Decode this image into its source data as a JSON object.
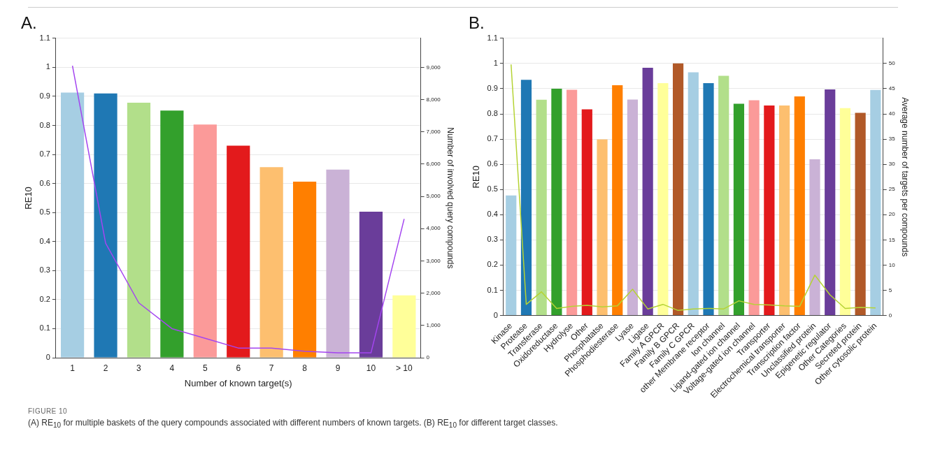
{
  "chart_data": [
    {
      "type": "bar",
      "title": "A.",
      "xlabel": "Number of known target(s)",
      "ylabel": "RE10",
      "y2label": "Number of involved query compounds",
      "categories": [
        "1",
        "2",
        "3",
        "4",
        "5",
        "6",
        "7",
        "8",
        "9",
        "10",
        "> 10"
      ],
      "series": [
        {
          "colors": [
            "#a6cee3",
            "#1f78b4",
            "#b2df8a",
            "#33a02c",
            "#fb9a99",
            "#e31a1c",
            "#fdbf6f",
            "#ff7f00",
            "#cab2d6",
            "#6a3d9a",
            "#ffff99"
          ],
          "values": [
            0.913,
            0.91,
            0.878,
            0.851,
            0.803,
            0.73,
            0.656,
            0.606,
            0.648,
            0.503,
            0.215
          ]
        },
        {
          "type": "line",
          "axis": "y2",
          "color": "#a445f0",
          "values": [
            9050,
            3550,
            1700,
            900,
            600,
            300,
            300,
            200,
            150,
            150,
            4300
          ]
        }
      ],
      "ylim": [
        0,
        1.1
      ],
      "yticks": [
        0,
        0.1,
        0.2,
        0.3,
        0.4,
        0.5,
        0.6,
        0.7,
        0.8,
        0.9,
        1,
        1.1
      ],
      "y2lim": [
        0,
        9900
      ],
      "y2ticks": [
        0,
        {
          "value": 1000,
          "label": "1,000"
        },
        {
          "value": 2000,
          "label": "2,000"
        },
        {
          "value": 3000,
          "label": "3,000"
        },
        {
          "value": 4000,
          "label": "4,000"
        },
        {
          "value": 5000,
          "label": "5,000"
        },
        {
          "value": 6000,
          "label": "6,000"
        },
        {
          "value": 7000,
          "label": "7,000"
        },
        {
          "value": 8000,
          "label": "8,000"
        },
        {
          "value": 9000,
          "label": "9,000"
        }
      ],
      "grid": "y",
      "legend": false,
      "annotations": [
        "FIGURE 10",
        "(A) RE$_{10}$ for multiple baskets of the query compounds associated with different numbers of known targets. (B) RE$_{10}$ for different target classes."
      ]
    },
    {
      "type": "bar",
      "title": "B.",
      "ylabel": "RE10",
      "y2label": "Average number of targets per compounds",
      "categories": [
        "Kinase",
        "Protease",
        "Transferase",
        "Oxidoreductase",
        "Hydrolyse",
        "Other",
        "Phosphatatse",
        "Phosphodiesterase",
        "Lyase",
        "Ligase",
        "Family A GPCR",
        "Family B GPCR",
        "Family C GPCR",
        "other Membrane receptor",
        "Ion channel",
        "Ligand-gated ion channel",
        "Voltage-gated ion channel",
        "Transporter",
        "Electrochemical transporter",
        "Transcription factor",
        "Unclassified protein",
        "Epigenetic regulator",
        "Other Categories",
        "Secreted protein",
        "Other cytosolic protein"
      ],
      "series": [
        {
          "colors": [
            "#a6cee3",
            "#1f78b4",
            "#b2df8a",
            "#33a02c",
            "#fb9a99",
            "#e31a1c",
            "#fdbf6f",
            "#ff7f00",
            "#cab2d6",
            "#6a3d9a",
            "#ffff99",
            "#b15928",
            "#a6cee3",
            "#1f78b4",
            "#b2df8a",
            "#33a02c",
            "#fb9a99",
            "#e31a1c",
            "#fdbf6f",
            "#ff7f00",
            "#cab2d6",
            "#6a3d9a",
            "#ffff99",
            "#b15928",
            "#a6cee3"
          ],
          "values": [
            0.476,
            0.935,
            0.856,
            0.9,
            0.896,
            0.818,
            0.699,
            0.914,
            0.857,
            0.983,
            0.922,
            1.0,
            0.965,
            0.922,
            0.951,
            0.84,
            0.854,
            0.833,
            0.833,
            0.869,
            0.62,
            0.897,
            0.823,
            0.804,
            0.895
          ]
        },
        {
          "type": "line",
          "axis": "y2",
          "color": "#b5d334",
          "values": [
            49.8,
            2.2,
            4.7,
            1.4,
            1.8,
            2.0,
            1.7,
            1.9,
            5.2,
            1.3,
            2.2,
            1.0,
            1.3,
            1.4,
            1.3,
            2.9,
            2.2,
            2.1,
            1.9,
            1.8,
            8.0,
            4.1,
            1.4,
            1.6,
            1.5
          ]
        }
      ],
      "ylim": [
        0,
        1.1
      ],
      "yticks": [
        0,
        0.1,
        0.2,
        0.3,
        0.4,
        0.5,
        0.6,
        0.7,
        0.8,
        0.9,
        1,
        1.1
      ],
      "y2lim": [
        0,
        55
      ],
      "y2ticks": [
        0,
        5,
        10,
        15,
        20,
        25,
        30,
        35,
        40,
        45,
        50
      ],
      "grid": "y",
      "legend": false
    }
  ]
}
